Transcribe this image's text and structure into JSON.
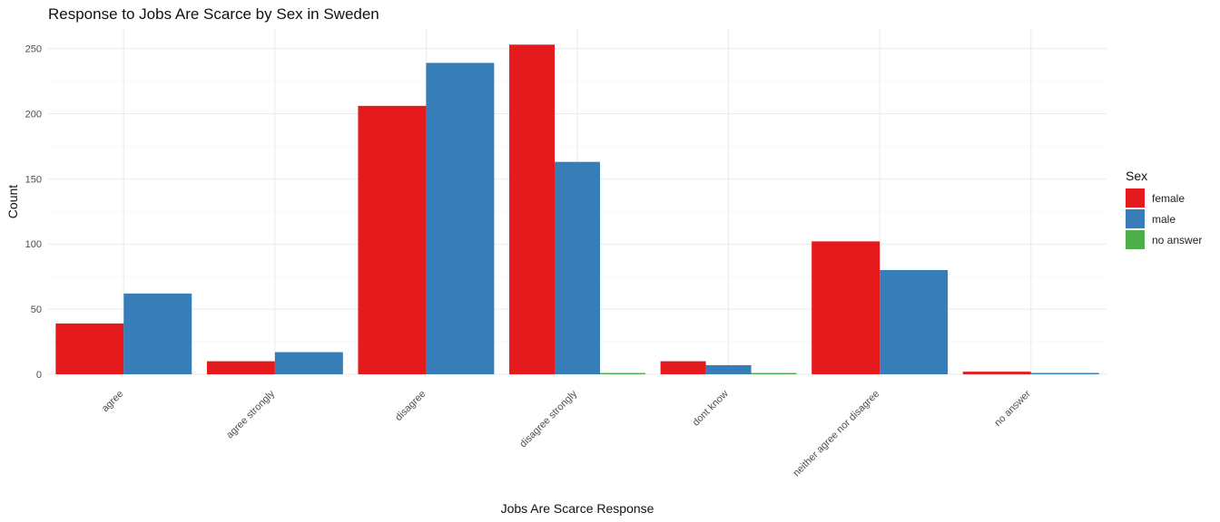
{
  "chart_data": {
    "type": "bar",
    "title": "Response to Jobs Are Scarce by Sex in Sweden",
    "xlabel": "Jobs Are Scarce Response",
    "ylabel": "Count",
    "categories": [
      "agree",
      "agree strongly",
      "disagree",
      "disagree strongly",
      "dont know",
      "neither agree nor disagree",
      "no answer"
    ],
    "series": [
      {
        "name": "female",
        "color": "#E41A1C",
        "values": [
          39,
          10,
          206,
          253,
          10,
          102,
          2
        ]
      },
      {
        "name": "male",
        "color": "#377EB8",
        "values": [
          62,
          17,
          239,
          163,
          7,
          80,
          1
        ]
      },
      {
        "name": "no answer",
        "color": "#4DAF4A",
        "values": [
          null,
          null,
          null,
          1,
          1,
          null,
          null
        ]
      }
    ],
    "ylim": [
      0,
      265
    ],
    "yticks": [
      0,
      50,
      100,
      150,
      200,
      250
    ],
    "grid": true,
    "legend": {
      "title": "Sex",
      "position": "right"
    }
  }
}
